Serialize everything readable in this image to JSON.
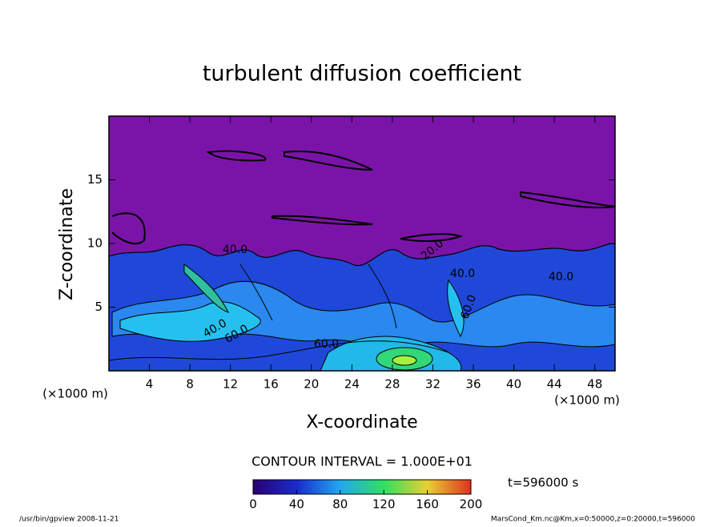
{
  "chart_data": {
    "type": "contour",
    "title": "turbulent diffusion coefficient",
    "x_label": "X-coordinate",
    "y_label": "Z-coordinate",
    "x_unit": "(×1000 m)",
    "xlim": [
      0,
      50
    ],
    "xticks": [
      4,
      8,
      12,
      16,
      20,
      24,
      28,
      32,
      36,
      40,
      44,
      48
    ],
    "ylim": [
      0,
      20
    ],
    "yticks": [
      5,
      10,
      15
    ],
    "contour_labels": [
      "40.0",
      "60.0",
      "60.0",
      "20.0",
      "40.0",
      "40.0",
      "60.0",
      "40.0"
    ],
    "contour_interval": "CONTOUR INTERVAL = 1.000E+01",
    "time_label": "t=596000 s",
    "colorbar": {
      "clim": [
        0,
        200
      ],
      "ticks": [
        0,
        40,
        80,
        120,
        160,
        200
      ],
      "colors": [
        "#2a0070",
        "#1a2ad0",
        "#20a8f0",
        "#30e060",
        "#e8d030",
        "#e03020"
      ]
    }
  },
  "footer": {
    "left": "/usr/bin/gpview  2008-11-21",
    "right": "MarsCond_Km.nc@Km,x=0:50000,z=0:20000,t=596000"
  }
}
